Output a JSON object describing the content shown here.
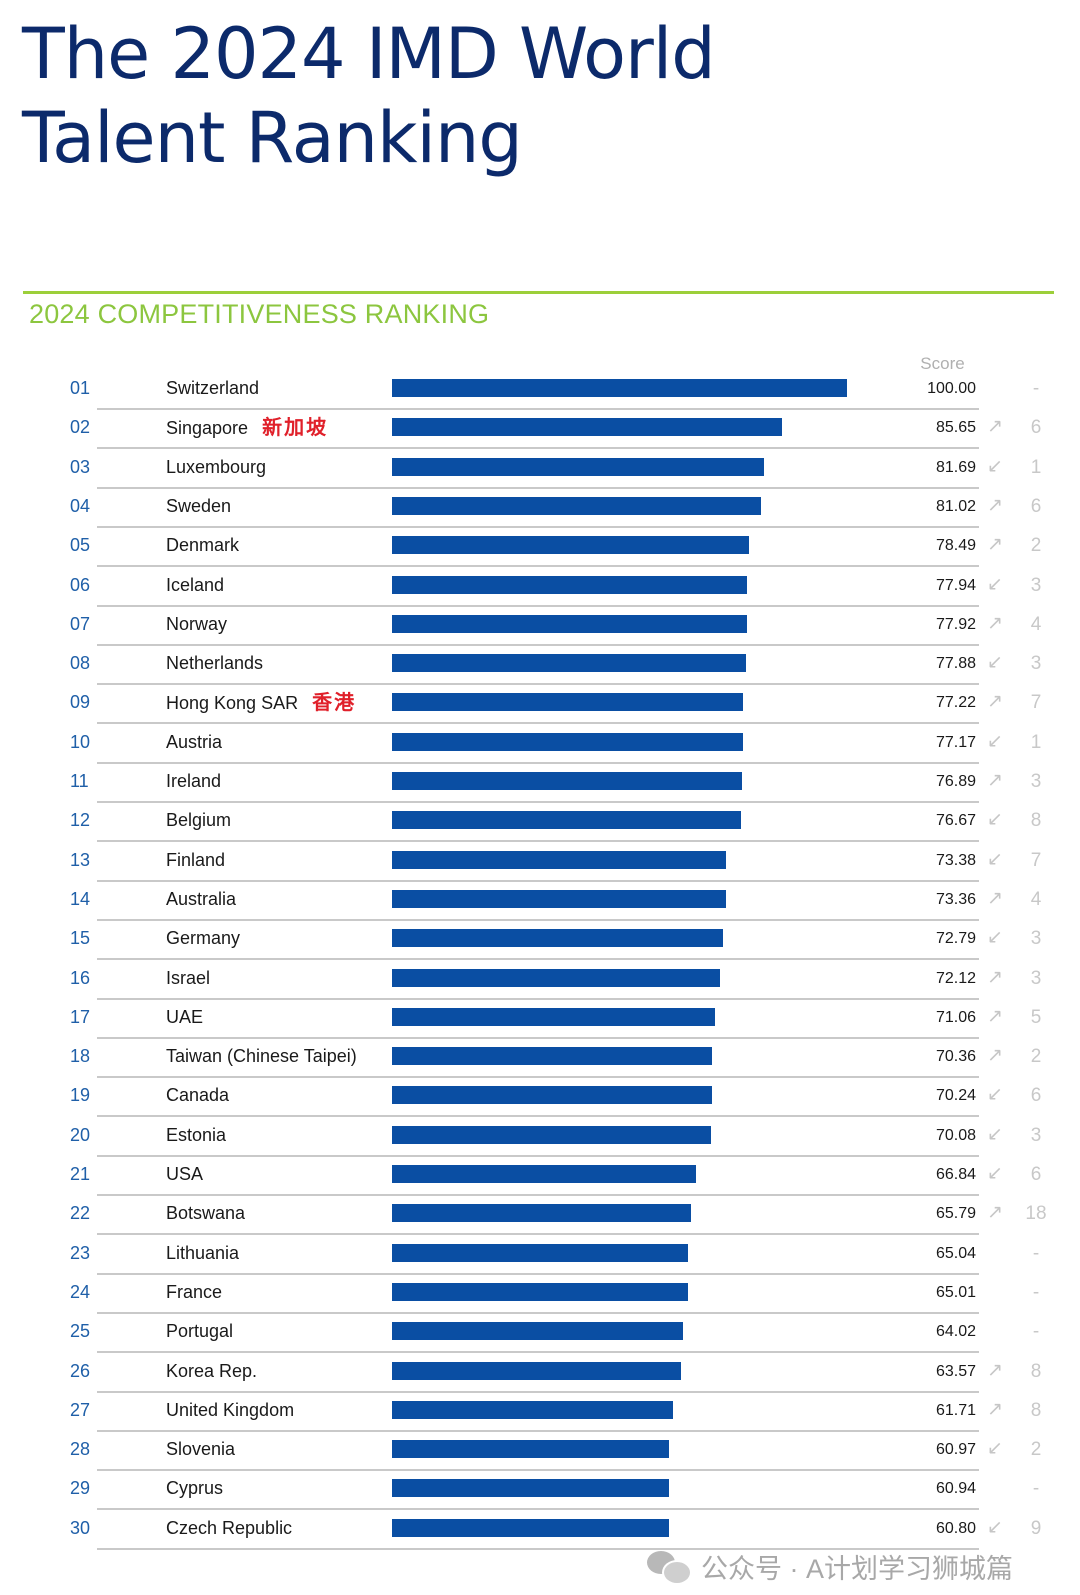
{
  "title_lines": [
    "The 2024 IMD World",
    "Talent Ranking"
  ],
  "subtitle": "2024 COMPETITIVENESS RANKING",
  "score_header": "Score",
  "watermark": "公众号 · A计划学习狮城篇",
  "colors": {
    "title": "#0c2a6b",
    "accent_green": "#8cc63f",
    "bar": "#0a4ea3",
    "rank": "#1f5fa8",
    "annotation": "#e0202a",
    "muted": "#c8c8c8"
  },
  "chart_data": {
    "type": "bar",
    "orientation": "horizontal",
    "title": "2024 COMPETITIVENESS RANKING",
    "value_label": "Score",
    "xlim": [
      0,
      100
    ],
    "rows": [
      {
        "rank": "01",
        "country": "Switzerland",
        "score": 100.0,
        "score_text": "100.00",
        "trend": "",
        "change": "-"
      },
      {
        "rank": "02",
        "country": "Singapore",
        "note": "新加坡",
        "score": 85.65,
        "score_text": "85.65",
        "trend": "up",
        "change": "6"
      },
      {
        "rank": "03",
        "country": "Luxembourg",
        "score": 81.69,
        "score_text": "81.69",
        "trend": "down",
        "change": "1"
      },
      {
        "rank": "04",
        "country": "Sweden",
        "score": 81.02,
        "score_text": "81.02",
        "trend": "up",
        "change": "6"
      },
      {
        "rank": "05",
        "country": "Denmark",
        "score": 78.49,
        "score_text": "78.49",
        "trend": "up",
        "change": "2"
      },
      {
        "rank": "06",
        "country": "Iceland",
        "score": 77.94,
        "score_text": "77.94",
        "trend": "down",
        "change": "3"
      },
      {
        "rank": "07",
        "country": "Norway",
        "score": 77.92,
        "score_text": "77.92",
        "trend": "up",
        "change": "4"
      },
      {
        "rank": "08",
        "country": "Netherlands",
        "score": 77.88,
        "score_text": "77.88",
        "trend": "down",
        "change": "3"
      },
      {
        "rank": "09",
        "country": "Hong Kong SAR",
        "note": "香港",
        "score": 77.22,
        "score_text": "77.22",
        "trend": "up",
        "change": "7"
      },
      {
        "rank": "10",
        "country": "Austria",
        "score": 77.17,
        "score_text": "77.17",
        "trend": "down",
        "change": "1"
      },
      {
        "rank": "11",
        "country": "Ireland",
        "score": 76.89,
        "score_text": "76.89",
        "trend": "up",
        "change": "3"
      },
      {
        "rank": "12",
        "country": "Belgium",
        "score": 76.67,
        "score_text": "76.67",
        "trend": "down",
        "change": "8"
      },
      {
        "rank": "13",
        "country": "Finland",
        "score": 73.38,
        "score_text": "73.38",
        "trend": "down",
        "change": "7"
      },
      {
        "rank": "14",
        "country": "Australia",
        "score": 73.36,
        "score_text": "73.36",
        "trend": "up",
        "change": "4"
      },
      {
        "rank": "15",
        "country": "Germany",
        "score": 72.79,
        "score_text": "72.79",
        "trend": "down",
        "change": "3"
      },
      {
        "rank": "16",
        "country": "Israel",
        "score": 72.12,
        "score_text": "72.12",
        "trend": "up",
        "change": "3"
      },
      {
        "rank": "17",
        "country": "UAE",
        "score": 71.06,
        "score_text": "71.06",
        "trend": "up",
        "change": "5"
      },
      {
        "rank": "18",
        "country": "Taiwan (Chinese Taipei)",
        "score": 70.36,
        "score_text": "70.36",
        "trend": "up",
        "change": "2"
      },
      {
        "rank": "19",
        "country": "Canada",
        "score": 70.24,
        "score_text": "70.24",
        "trend": "down",
        "change": "6"
      },
      {
        "rank": "20",
        "country": "Estonia",
        "score": 70.08,
        "score_text": "70.08",
        "trend": "down",
        "change": "3"
      },
      {
        "rank": "21",
        "country": "USA",
        "score": 66.84,
        "score_text": "66.84",
        "trend": "down",
        "change": "6"
      },
      {
        "rank": "22",
        "country": "Botswana",
        "score": 65.79,
        "score_text": "65.79",
        "trend": "up",
        "change": "18"
      },
      {
        "rank": "23",
        "country": "Lithuania",
        "score": 65.04,
        "score_text": "65.04",
        "trend": "",
        "change": "-"
      },
      {
        "rank": "24",
        "country": "France",
        "score": 65.01,
        "score_text": "65.01",
        "trend": "",
        "change": "-"
      },
      {
        "rank": "25",
        "country": "Portugal",
        "score": 64.02,
        "score_text": "64.02",
        "trend": "",
        "change": "-"
      },
      {
        "rank": "26",
        "country": "Korea Rep.",
        "score": 63.57,
        "score_text": "63.57",
        "trend": "up",
        "change": "8"
      },
      {
        "rank": "27",
        "country": "United Kingdom",
        "score": 61.71,
        "score_text": "61.71",
        "trend": "up",
        "change": "8"
      },
      {
        "rank": "28",
        "country": "Slovenia",
        "score": 60.97,
        "score_text": "60.97",
        "trend": "down",
        "change": "2"
      },
      {
        "rank": "29",
        "country": "Cyprus",
        "score": 60.94,
        "score_text": "60.94",
        "trend": "",
        "change": "-"
      },
      {
        "rank": "30",
        "country": "Czech Republic",
        "score": 60.8,
        "score_text": "60.80",
        "trend": "down",
        "change": "9"
      }
    ]
  }
}
